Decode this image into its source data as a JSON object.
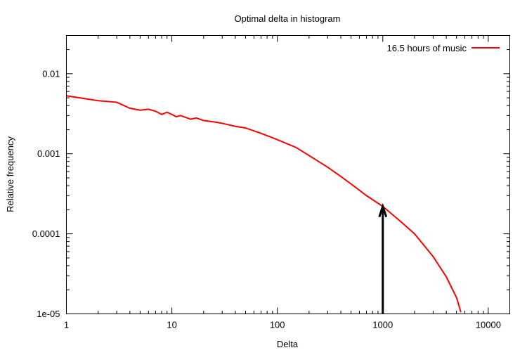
{
  "chart_data": {
    "type": "line",
    "title": "Optimal delta in histogram",
    "xlabel": "Delta",
    "ylabel": "Relative frequency",
    "x_scale": "log",
    "y_scale": "log",
    "xlim": [
      1,
      16000
    ],
    "ylim": [
      1e-05,
      0.03
    ],
    "grid": false,
    "legend_position": "top-right",
    "x_ticks": [
      {
        "value": 1,
        "label": "1"
      },
      {
        "value": 10,
        "label": "10"
      },
      {
        "value": 100,
        "label": "100"
      },
      {
        "value": 1000,
        "label": "1000"
      },
      {
        "value": 10000,
        "label": "10000"
      }
    ],
    "y_ticks": [
      {
        "value": 0.01,
        "label": "0.01"
      },
      {
        "value": 0.001,
        "label": "0.001"
      },
      {
        "value": 0.0001,
        "label": "0.0001"
      },
      {
        "value": 1e-05,
        "label": "1e-05"
      }
    ],
    "series": [
      {
        "name": "16.5 hours of music",
        "color": "#ff0000",
        "x": [
          1,
          2,
          3,
          4,
          5,
          6,
          7,
          8,
          9,
          10,
          11,
          12,
          13,
          15,
          17,
          20,
          25,
          30,
          40,
          50,
          70,
          100,
          150,
          200,
          300,
          400,
          500,
          700,
          1000,
          1500,
          2000,
          3000,
          4000,
          5000,
          5500
        ],
        "y": [
          0.0053,
          0.0046,
          0.0044,
          0.0037,
          0.0035,
          0.0036,
          0.0034,
          0.0031,
          0.0033,
          0.0031,
          0.0029,
          0.003,
          0.0029,
          0.0027,
          0.0028,
          0.0026,
          0.0025,
          0.0024,
          0.0022,
          0.0021,
          0.0018,
          0.0015,
          0.0012,
          0.00095,
          0.00068,
          0.00052,
          0.00042,
          0.0003,
          0.00022,
          0.00014,
          0.0001,
          5.2e-05,
          2.9e-05,
          1.6e-05,
          1.05e-05
        ]
      }
    ],
    "annotations": [
      {
        "type": "arrow",
        "x": 1000,
        "y_from": 1e-05,
        "y_to": 0.00022,
        "color": "#000000"
      }
    ]
  }
}
